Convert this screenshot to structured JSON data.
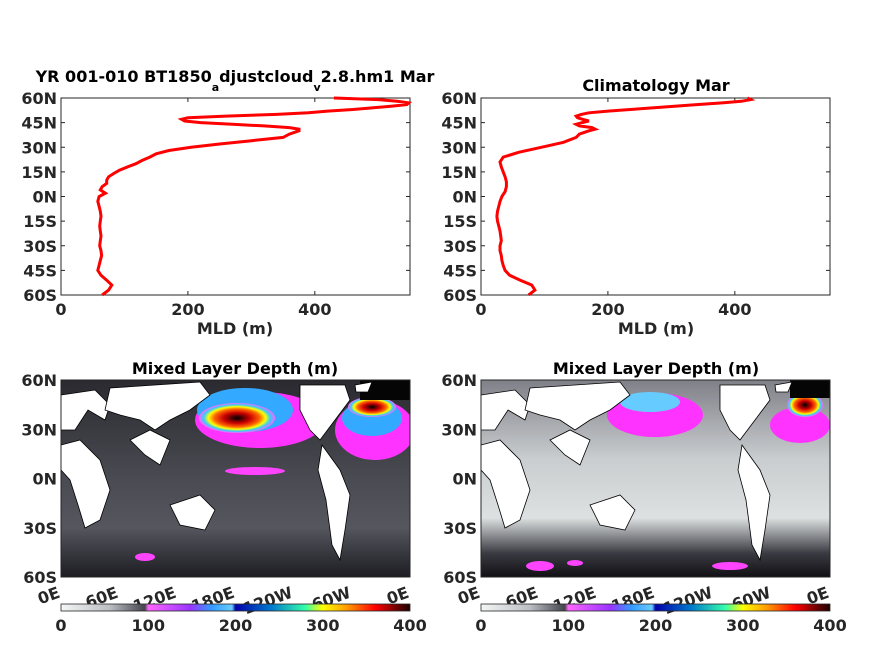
{
  "chart_data": [
    {
      "type": "line",
      "title_parts": [
        "YR 001-010 BT1850",
        "a",
        "djustcloud",
        "v",
        "2.8.hm1 Mar"
      ],
      "xlabel": "MLD (m)",
      "xlim": [
        0,
        550
      ],
      "xticks": [
        0,
        200,
        400
      ],
      "ylim": [
        -60,
        60
      ],
      "yticks": [
        "60S",
        "45S",
        "30S",
        "15S",
        "0N",
        "15N",
        "30N",
        "45N",
        "60N"
      ],
      "series": [
        {
          "color": "#ff0000",
          "lat": [
            -60,
            -57,
            -54,
            -51,
            -48,
            -45,
            -42,
            -39,
            -36,
            -33,
            -30,
            -27,
            -24,
            -21,
            -18,
            -15,
            -12,
            -9,
            -6,
            -3,
            0,
            2,
            4,
            6,
            8,
            10,
            12,
            14,
            16,
            18,
            20,
            22,
            24,
            26,
            28,
            30,
            32,
            34,
            36,
            38,
            40,
            41,
            42,
            43,
            44,
            45,
            46,
            47,
            48,
            49,
            50,
            51,
            52,
            53,
            54,
            55,
            56,
            57,
            58,
            59,
            60
          ],
          "mld": [
            65,
            75,
            80,
            72,
            63,
            58,
            60,
            62,
            64,
            63,
            61,
            62,
            63,
            62,
            61,
            62,
            63,
            62,
            60,
            58,
            60,
            70,
            62,
            65,
            72,
            72,
            75,
            83,
            92,
            105,
            118,
            128,
            140,
            150,
            170,
            205,
            250,
            300,
            350,
            360,
            375,
            375,
            360,
            320,
            270,
            220,
            195,
            190,
            200,
            260,
            340,
            390,
            420,
            460,
            490,
            520,
            545,
            548,
            530,
            500,
            430
          ]
        }
      ]
    },
    {
      "type": "line",
      "title": "Climatology Mar",
      "xlabel": "MLD (m)",
      "xlim": [
        0,
        550
      ],
      "xticks": [
        0,
        200,
        400
      ],
      "ylim": [
        -60,
        60
      ],
      "yticks": [
        "60S",
        "45S",
        "30S",
        "15S",
        "0N",
        "15N",
        "30N",
        "45N",
        "60N"
      ],
      "series": [
        {
          "color": "#ff0000",
          "lat": [
            -60,
            -57,
            -54,
            -51,
            -48,
            -45,
            -42,
            -39,
            -36,
            -33,
            -30,
            -27,
            -24,
            -21,
            -18,
            -15,
            -12,
            -9,
            -6,
            -3,
            0,
            3,
            6,
            9,
            12,
            15,
            18,
            21,
            24,
            27,
            30,
            33,
            36,
            38,
            40,
            41,
            42,
            43,
            44,
            45,
            46,
            47,
            48,
            49,
            50,
            51,
            52,
            53,
            54,
            55,
            56,
            57,
            58,
            59,
            60
          ],
          "mld": [
            75,
            85,
            80,
            62,
            45,
            38,
            35,
            33,
            32,
            30,
            30,
            32,
            31,
            30,
            28,
            26,
            25,
            26,
            28,
            30,
            33,
            38,
            40,
            40,
            38,
            35,
            32,
            30,
            35,
            60,
            95,
            130,
            150,
            155,
            170,
            180,
            175,
            155,
            150,
            160,
            170,
            160,
            152,
            150,
            158,
            170,
            200,
            235,
            270,
            305,
            340,
            380,
            410,
            425,
            420
          ]
        }
      ]
    },
    {
      "type": "heatmap",
      "title": "Mixed Layer Depth (m)",
      "xticks": [
        "0E",
        "60E",
        "120E",
        "180E",
        "120W",
        "60W",
        "0E"
      ],
      "yticks": [
        "60S",
        "30S",
        "0N",
        "30N",
        "60N"
      ],
      "ylim": [
        -60,
        60
      ],
      "colorbar_ticks": [
        0,
        100,
        200,
        300,
        400
      ],
      "colorbar_range": [
        0,
        400
      ],
      "variant": "model"
    },
    {
      "type": "heatmap",
      "title": "Mixed Layer Depth (m)",
      "xticks": [
        "0E",
        "60E",
        "120E",
        "180E",
        "120W",
        "60W",
        "0E"
      ],
      "yticks": [
        "60S",
        "30S",
        "0N",
        "30N",
        "60N"
      ],
      "ylim": [
        -60,
        60
      ],
      "colorbar_ticks": [
        0,
        100,
        200,
        300,
        400
      ],
      "colorbar_range": [
        0,
        400
      ],
      "variant": "climatology"
    }
  ]
}
